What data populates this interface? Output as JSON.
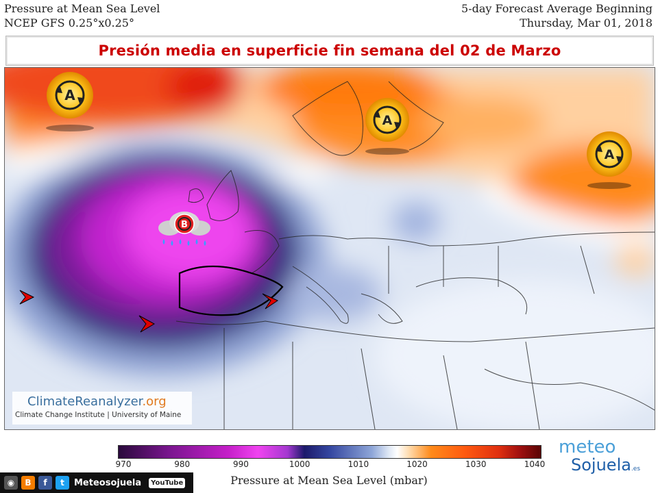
{
  "header": {
    "title_left_1": "Pressure at Mean Sea Level",
    "title_left_2": "NCEP GFS 0.25°x0.25°",
    "title_right_1": "5-day Forecast Average Beginning",
    "title_right_2": "Thursday, Mar 01, 2018"
  },
  "banner": {
    "title": "Presión media en superficie fin semana del 02 de Marzo"
  },
  "map": {
    "high_symbol": "A",
    "low_symbol": "B"
  },
  "logo": {
    "part1": "ClimateReanalyzer",
    "part2": ".org",
    "subtitle": "Climate Change Institute | University of Maine"
  },
  "colorbar": {
    "ticks": [
      "970",
      "980",
      "990",
      "1000",
      "1010",
      "1020",
      "1030",
      "1040"
    ],
    "label": "Pressure at Mean Sea Level (mbar)",
    "colors": {
      "low": "#c51fc9",
      "mid": "#ffffff",
      "high": "#e03010"
    }
  },
  "meteosojuela": {
    "line1": "meteo",
    "line2": "Sojuela",
    "suffix": ".es"
  },
  "social": {
    "name": "Meteosojuela",
    "youtube": "YouTube"
  }
}
